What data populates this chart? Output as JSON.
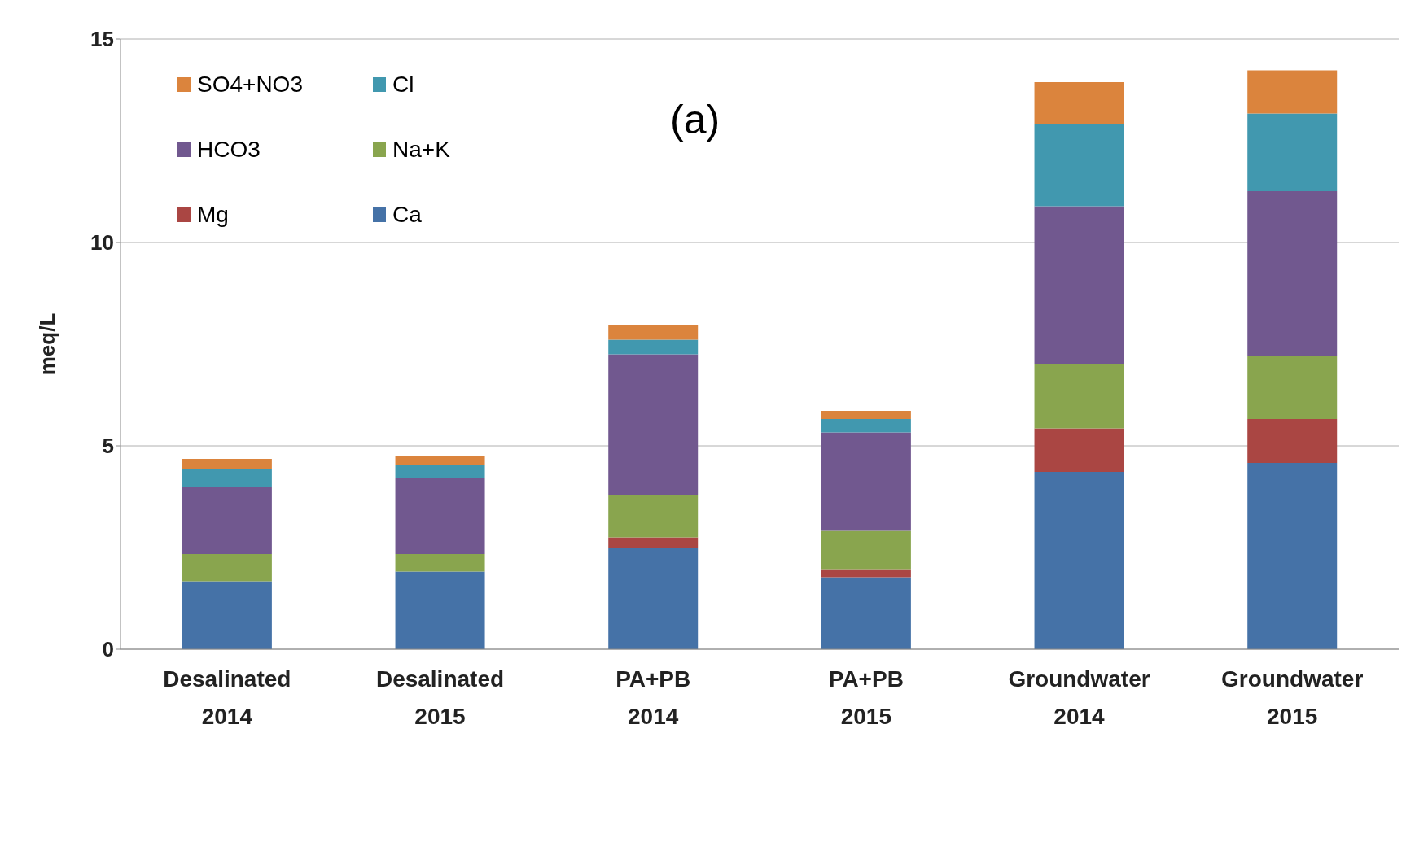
{
  "chart_data": {
    "type": "bar",
    "stacked": true,
    "ylabel": "meq/L",
    "annotations": [
      "(a)"
    ],
    "categories": [
      "Desalinated 2014",
      "Desalinated 2015",
      "PA+PB 2014",
      "PA+PB 2015",
      "Groundwater 2014",
      "Groundwater 2015"
    ],
    "series": [
      {
        "name": "Ca",
        "color": "#4572a7",
        "values": [
          1.67,
          1.91,
          2.48,
          1.77,
          4.36,
          4.58
        ]
      },
      {
        "name": "Mg",
        "color": "#aa4643",
        "values": [
          0,
          0,
          0.27,
          0.2,
          1.07,
          1.08
        ]
      },
      {
        "name": "Na+K",
        "color": "#89a54e",
        "values": [
          0.67,
          0.43,
          1.04,
          0.94,
          1.57,
          1.55
        ]
      },
      {
        "name": "HCO3",
        "color": "#71588f",
        "values": [
          1.65,
          1.87,
          3.46,
          2.42,
          3.89,
          4.05
        ]
      },
      {
        "name": "Cl",
        "color": "#4198af",
        "values": [
          0.45,
          0.33,
          0.36,
          0.33,
          2.01,
          1.91
        ]
      },
      {
        "name": "SO4+NO3",
        "color": "#db843d",
        "values": [
          0.24,
          0.2,
          0.35,
          0.2,
          1.04,
          1.06
        ]
      }
    ],
    "ylim": [
      0,
      15
    ],
    "yticks": [
      0,
      5,
      10,
      15
    ],
    "grid": "y",
    "legend": "top left"
  }
}
